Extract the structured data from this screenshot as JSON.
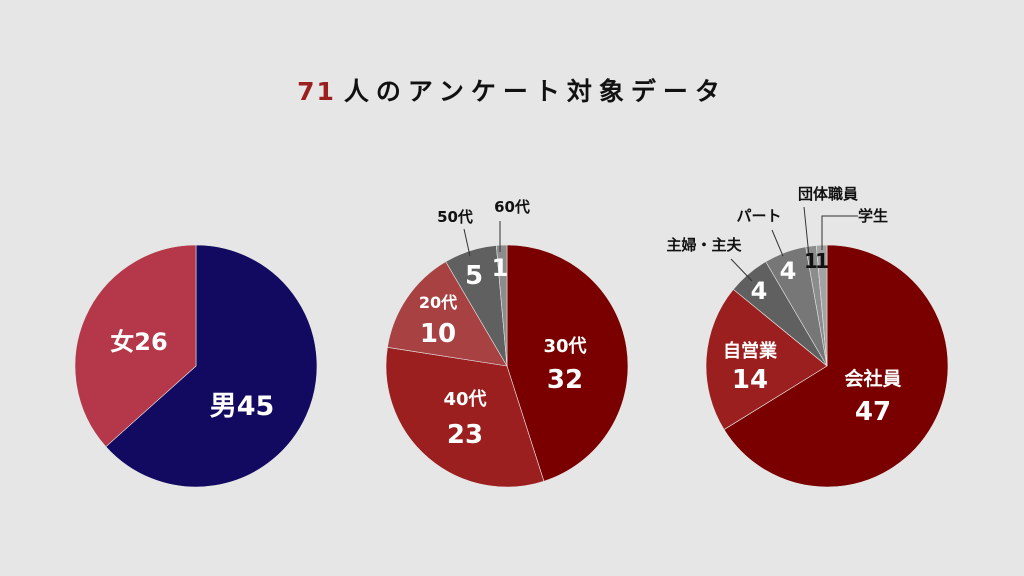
{
  "title": {
    "count": "71",
    "text": "人のアンケート対象データ",
    "count_color": "#9b1f1f"
  },
  "chart_data": [
    {
      "type": "pie",
      "title": "",
      "slices": [
        {
          "label": "男",
          "value": 45,
          "color": "#120a60",
          "text": "男45"
        },
        {
          "label": "女",
          "value": 26,
          "color": "#b5384a",
          "text": "女26"
        }
      ]
    },
    {
      "type": "pie",
      "title": "",
      "slices": [
        {
          "label": "30代",
          "value": 32,
          "color": "#7a0000"
        },
        {
          "label": "40代",
          "value": 23,
          "color": "#9b1f1f"
        },
        {
          "label": "20代",
          "value": 10,
          "color": "#a84242"
        },
        {
          "label": "50代",
          "value": 5,
          "color": "#606060"
        },
        {
          "label": "60代",
          "value": 1,
          "color": "#8c8c8c"
        }
      ]
    },
    {
      "type": "pie",
      "title": "",
      "slices": [
        {
          "label": "会社員",
          "value": 47,
          "color": "#7a0000"
        },
        {
          "label": "自営業",
          "value": 14,
          "color": "#9b1f1f"
        },
        {
          "label": "主婦・主夫",
          "value": 4,
          "color": "#606060"
        },
        {
          "label": "パート",
          "value": 4,
          "color": "#777777"
        },
        {
          "label": "団体職員",
          "value": 1,
          "color": "#8c8c8c"
        },
        {
          "label": "学生",
          "value": 1,
          "color": "#a3a3a3"
        }
      ]
    }
  ]
}
